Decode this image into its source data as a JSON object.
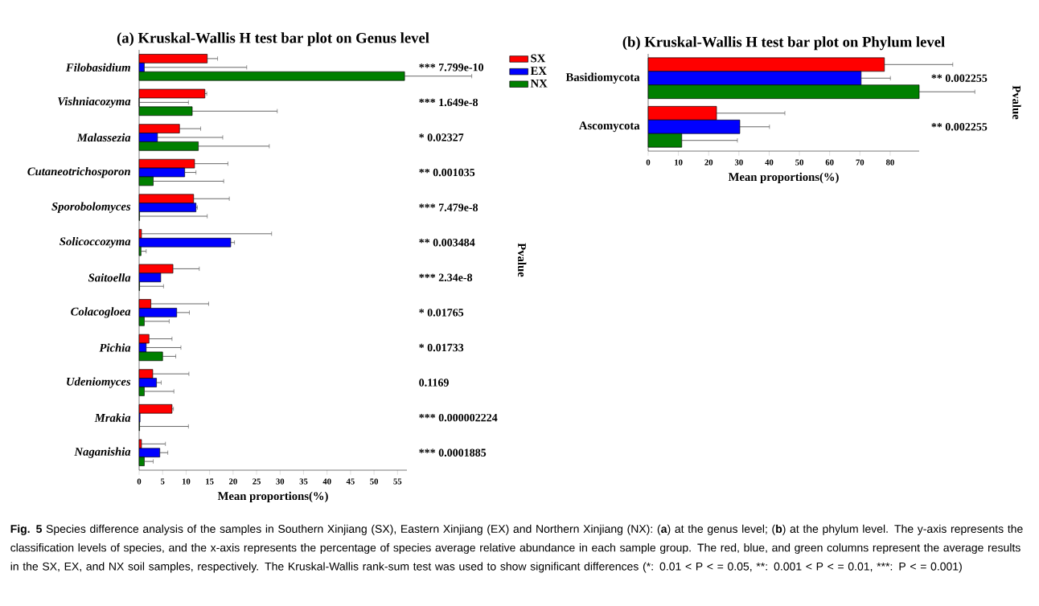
{
  "chart_data": [
    {
      "type": "bar",
      "orientation": "horizontal",
      "title": "(a)  Kruskal-Wallis H test bar plot on Genus level",
      "xlabel": "Mean proportions(%)",
      "y2label": "Pvalue",
      "categories": [
        "Filobasidium",
        "Vishniacozyma",
        "Malassezia",
        "Cutaneotrichosporon",
        "Sporobolomyces",
        "Solicoccozyma",
        "Saitoella",
        "Colacogloea",
        "Pichia",
        "Udeniomyces",
        "Mrakia",
        "Naganishia"
      ],
      "series": [
        {
          "name": "SX",
          "color": "#ff0000",
          "values": [
            14.5,
            14.0,
            8.6,
            11.8,
            11.6,
            0.5,
            7.2,
            2.5,
            2.1,
            2.9,
            7.0,
            0.5
          ],
          "errors": [
            [
              14.5,
              16.7
            ],
            [
              14.0,
              14.4
            ],
            [
              8.6,
              13.1
            ],
            [
              11.8,
              18.9
            ],
            [
              11.6,
              19.2
            ],
            [
              0.5,
              28.2
            ],
            [
              7.2,
              12.8
            ],
            [
              2.5,
              14.8
            ],
            [
              2.1,
              7.0
            ],
            [
              2.9,
              10.6
            ],
            [
              7.0,
              7.3
            ],
            [
              0.5,
              5.6
            ]
          ]
        },
        {
          "name": "EX",
          "color": "#0000ff",
          "values": [
            1.1,
            0,
            3.9,
            9.7,
            12.1,
            19.5,
            4.6,
            8.0,
            1.5,
            3.7,
            0.2,
            4.4
          ],
          "errors": [
            [
              1.1,
              22.9
            ],
            [
              0,
              10.5
            ],
            [
              3.9,
              17.8
            ],
            [
              9.7,
              12.1
            ],
            [
              12.1,
              12.4
            ],
            [
              19.5,
              20.3
            ],
            null,
            [
              8.0,
              10.7
            ],
            [
              1.5,
              8.9
            ],
            [
              3.7,
              4.7
            ],
            null,
            [
              4.4,
              6.1
            ]
          ]
        },
        {
          "name": "NX",
          "color": "#008000",
          "values": [
            56.5,
            11.3,
            12.6,
            3.0,
            0.1,
            0.4,
            0.1,
            1.1,
            5.0,
            1.1,
            0.1,
            1.1
          ],
          "errors": [
            [
              56.5,
              70.8
            ],
            [
              11.3,
              29.4
            ],
            [
              12.6,
              27.7
            ],
            [
              3.0,
              18.0
            ],
            [
              0.1,
              14.5
            ],
            [
              0.4,
              1.5
            ],
            [
              0.1,
              5.2
            ],
            [
              1.1,
              6.4
            ],
            [
              5.0,
              7.8
            ],
            [
              1.1,
              7.4
            ],
            [
              0.1,
              10.5
            ],
            [
              1.1,
              3.0
            ]
          ]
        }
      ],
      "xlim": [
        0,
        57
      ],
      "xticks": [
        0,
        5,
        10,
        15,
        20,
        25,
        30,
        35,
        40,
        45,
        50,
        55
      ],
      "legend": "right",
      "annotations": [
        "*** 7.799e-10",
        "*** 1.649e-8",
        "* 0.02327",
        "** 0.001035",
        "*** 7.479e-8",
        "** 0.003484",
        "*** 2.34e-8",
        "* 0.01765",
        "* 0.01733",
        "0.1169",
        "*** 0.000002224",
        "*** 0.0001885",
        "**Fig. 5** Species difference analysis of the samples in Southern Xinjiang (SX), Eastern Xinjiang (EX) and Northern Xinjiang (NX): (**a**) at the genus level; (**b**) at the phylum level. The y-axis represents the classification levels of species, and the x-axis represents the percentage of species average relative abundance in each sample group. The red, blue, and green columns represent the average results in the SX, EX, and NX soil samples, respectively. The Kruskal-Wallis rank-sum test was used to show significant differences",
        "(*: 0.01 < P < = 0.05,",
        "**: 0.001 < P < = 0.01,",
        "***: P < = 0.001)"
      ]
    },
    {
      "type": "bar",
      "orientation": "horizontal",
      "title": "(b)  Kruskal-Wallis H test bar plot on Phylum level",
      "xlabel": "Mean proportions(%)",
      "y2label": "Pvalue",
      "categories": [
        "Basidiomycota",
        "Ascomycota"
      ],
      "series": [
        {
          "color": "#ff0000",
          "values": [
            78.1,
            22.6
          ],
          "errors": [
            [
              78.1,
              100.7
            ],
            [
              22.6,
              45.2
            ]
          ]
        },
        {
          "color": "#0000ff",
          "values": [
            70.4,
            30.3
          ],
          "errors": [
            [
              70.4,
              80.1
            ],
            [
              30.3,
              40.1
            ]
          ]
        },
        {
          "color": "#008000",
          "values": [
            89.6,
            11.1
          ],
          "errors": [
            [
              89.6,
              108.0
            ],
            [
              11.1,
              29.5
            ]
          ]
        }
      ],
      "xlim": [
        0,
        89.6
      ],
      "xticks": [
        0,
        10,
        20,
        30,
        40,
        50,
        60,
        70,
        80
      ],
      "annotations": [
        "** 0.002255",
        "** 0.002255"
      ]
    }
  ]
}
